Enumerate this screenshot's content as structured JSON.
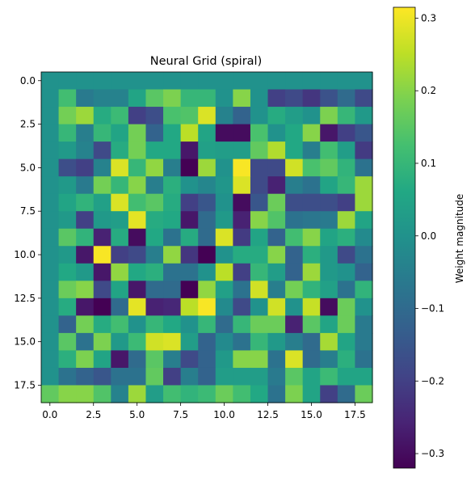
{
  "chart_data": {
    "type": "heatmap",
    "title": "Neural Grid (spiral)",
    "xlabel": "",
    "ylabel": "",
    "colormap": "viridis",
    "colorbar_label": "Weight magnitude",
    "vmin": -0.32,
    "vmax": 0.315,
    "rows": 19,
    "cols": 19,
    "x_ticks": [
      0.0,
      2.5,
      5.0,
      7.5,
      10.0,
      12.5,
      15.0,
      17.5
    ],
    "x_tick_labels": [
      "0.0",
      "2.5",
      "5.0",
      "7.5",
      "10.0",
      "12.5",
      "15.0",
      "17.5"
    ],
    "y_ticks": [
      0.0,
      2.5,
      5.0,
      7.5,
      10.0,
      12.5,
      15.0,
      17.5
    ],
    "y_tick_labels": [
      "0.0",
      "2.5",
      "5.0",
      "7.5",
      "10.0",
      "12.5",
      "15.0",
      "17.5"
    ],
    "colorbar_ticks": [
      -0.3,
      -0.2,
      -0.1,
      0.0,
      0.1,
      0.2,
      0.3
    ],
    "colorbar_tick_labels": [
      "−0.3",
      "−0.2",
      "−0.1",
      "0.0",
      "0.1",
      "0.2",
      "0.3"
    ],
    "values": [
      [
        0.0,
        0.0,
        0.0,
        0.0,
        0.0,
        0.0,
        0.0,
        0.0,
        0.0,
        0.0,
        0.0,
        0.0,
        0.0,
        0.0,
        0.0,
        0.0,
        0.0,
        0.0,
        0.0
      ],
      [
        0.0,
        0.12,
        -0.06,
        -0.04,
        -0.04,
        0.05,
        0.15,
        0.19,
        0.1,
        0.1,
        0.0,
        0.2,
        0.0,
        -0.2,
        -0.18,
        -0.22,
        -0.16,
        -0.1,
        -0.18
      ],
      [
        0.0,
        0.18,
        0.22,
        0.07,
        0.11,
        -0.2,
        -0.17,
        0.13,
        0.14,
        0.28,
        -0.04,
        -0.12,
        0.0,
        0.07,
        0.03,
        0.0,
        0.19,
        0.1,
        0.02
      ],
      [
        0.0,
        0.1,
        -0.05,
        0.1,
        0.05,
        0.18,
        -0.12,
        0.06,
        0.25,
        0.05,
        -0.3,
        -0.3,
        0.13,
        0.0,
        0.06,
        0.2,
        -0.28,
        -0.2,
        -0.15
      ],
      [
        0.0,
        0.02,
        -0.04,
        -0.18,
        0.07,
        0.18,
        0.06,
        0.06,
        -0.28,
        0.04,
        0.03,
        0.03,
        0.16,
        0.24,
        0.06,
        -0.05,
        0.12,
        0.03,
        -0.21
      ],
      [
        0.0,
        -0.17,
        -0.2,
        -0.04,
        0.28,
        0.1,
        0.21,
        -0.05,
        -0.32,
        0.22,
        0.0,
        0.31,
        -0.18,
        -0.18,
        0.27,
        0.13,
        0.16,
        0.09,
        -0.08
      ],
      [
        0.0,
        0.02,
        -0.06,
        0.18,
        0.1,
        0.2,
        -0.05,
        0.08,
        0.0,
        -0.03,
        0.01,
        0.28,
        -0.18,
        -0.26,
        -0.05,
        -0.08,
        0.05,
        0.1,
        0.22
      ],
      [
        0.0,
        0.05,
        0.09,
        0.04,
        0.28,
        0.12,
        0.15,
        0.07,
        -0.2,
        -0.15,
        0.0,
        -0.3,
        -0.15,
        0.17,
        -0.17,
        -0.17,
        -0.17,
        -0.2,
        0.22
      ],
      [
        0.0,
        0.02,
        -0.2,
        0.02,
        0.03,
        0.29,
        0.07,
        0.06,
        -0.28,
        -0.1,
        0.02,
        -0.26,
        0.2,
        0.14,
        -0.08,
        -0.07,
        -0.06,
        0.22,
        0.05
      ],
      [
        0.0,
        0.15,
        0.09,
        -0.26,
        0.07,
        -0.3,
        0.06,
        -0.08,
        0.07,
        -0.1,
        0.28,
        -0.21,
        0.05,
        -0.12,
        0.12,
        0.2,
        0.05,
        0.08,
        -0.02
      ],
      [
        0.0,
        0.02,
        -0.28,
        0.31,
        -0.2,
        -0.18,
        -0.05,
        0.21,
        -0.22,
        -0.32,
        0.0,
        0.07,
        0.07,
        0.2,
        -0.12,
        0.08,
        0.02,
        -0.18,
        -0.08
      ],
      [
        0.0,
        0.06,
        0.02,
        -0.28,
        0.21,
        0.06,
        0.08,
        -0.08,
        -0.08,
        0.0,
        0.25,
        -0.2,
        0.1,
        0.03,
        -0.12,
        0.22,
        0.02,
        0.0,
        -0.12
      ],
      [
        0.0,
        0.17,
        0.2,
        -0.18,
        0.05,
        -0.28,
        -0.1,
        -0.1,
        -0.32,
        0.21,
        0.04,
        -0.08,
        0.27,
        -0.05,
        0.18,
        0.09,
        0.04,
        -0.08,
        0.09
      ],
      [
        0.0,
        0.07,
        -0.28,
        -0.32,
        -0.1,
        0.29,
        -0.26,
        -0.25,
        0.25,
        0.31,
        -0.02,
        -0.18,
        0.0,
        0.27,
        0.0,
        0.26,
        -0.3,
        0.17,
        0.0
      ],
      [
        0.0,
        -0.12,
        0.18,
        0.07,
        0.12,
        0.0,
        0.1,
        0.06,
        0.0,
        0.1,
        -0.1,
        0.1,
        0.17,
        0.17,
        -0.26,
        0.15,
        0.05,
        0.17,
        -0.06
      ],
      [
        0.0,
        0.15,
        -0.08,
        0.19,
        0.02,
        0.11,
        0.27,
        0.28,
        0.03,
        -0.12,
        -0.02,
        -0.08,
        0.1,
        0.02,
        -0.05,
        -0.1,
        0.23,
        0.05,
        -0.06
      ],
      [
        0.0,
        0.08,
        0.19,
        0.05,
        -0.28,
        -0.1,
        0.15,
        -0.05,
        -0.18,
        -0.12,
        0.02,
        0.2,
        0.2,
        -0.08,
        0.28,
        -0.1,
        -0.05,
        0.08,
        -0.08
      ],
      [
        0.0,
        -0.08,
        -0.12,
        -0.15,
        -0.08,
        -0.08,
        0.16,
        -0.2,
        -0.05,
        -0.12,
        0.03,
        0.03,
        0.03,
        -0.06,
        0.15,
        0.05,
        0.11,
        0.05,
        0.05
      ],
      [
        0.16,
        0.2,
        0.2,
        0.14,
        -0.04,
        0.22,
        0.03,
        0.12,
        0.09,
        0.11,
        0.17,
        0.12,
        0.06,
        -0.08,
        0.19,
        0.05,
        -0.2,
        -0.1,
        0.17
      ]
    ]
  }
}
